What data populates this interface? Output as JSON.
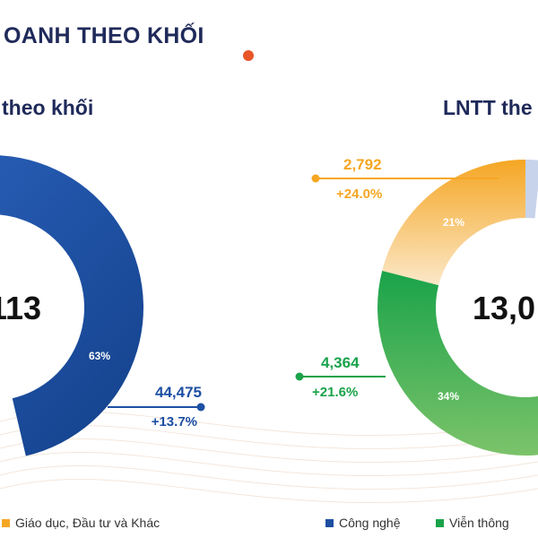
{
  "heading": "OANH THEO KHỐI",
  "subtitles": {
    "left": "theo khối",
    "right": "LNTT the"
  },
  "colors": {
    "blue": "#1d4fa3",
    "orange": "#f5a623",
    "green": "#1aa34a",
    "navy": "#1f2a5a",
    "accent": "#e8562a"
  },
  "chart_data": [
    {
      "type": "pie",
      "center_label": "113",
      "slices": [
        {
          "label": "63%",
          "value": 63,
          "color": "#1d4fa3"
        }
      ],
      "callouts": [
        {
          "value": "44,475",
          "change": "+13.7%",
          "color": "#1d4fa3"
        }
      ]
    },
    {
      "type": "pie",
      "center_label": "13,0",
      "slices": [
        {
          "label": "21%",
          "value": 21,
          "color": "#f5a623"
        },
        {
          "label": "34%",
          "value": 34,
          "color": "#1aa34a"
        }
      ],
      "callouts": [
        {
          "value": "2,792",
          "change": "+24.0%",
          "color": "#f5a623"
        },
        {
          "value": "4,364",
          "change": "+21.6%",
          "color": "#1aa34a"
        }
      ]
    }
  ],
  "legend": [
    {
      "label": "Giáo dục, Đầu tư và Khác",
      "color": "#f5a623"
    },
    {
      "label": "Công nghệ",
      "color": "#1d4fa3"
    },
    {
      "label": "Viễn thông",
      "color": "#1aa34a"
    }
  ]
}
